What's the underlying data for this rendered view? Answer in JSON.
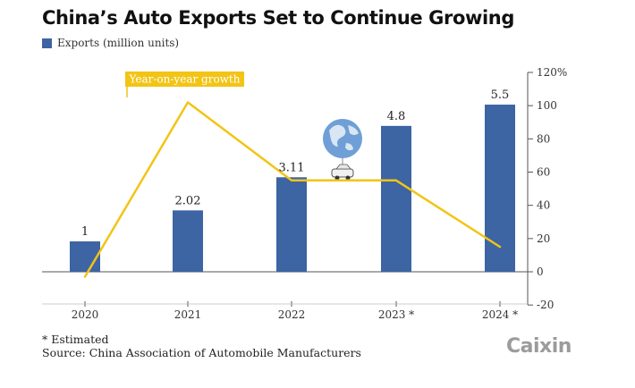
{
  "header": {
    "title": "China’s Auto Exports Set to Continue Growing"
  },
  "legend": {
    "bars_label": "Exports (million units)",
    "line_label": "Year-on-year growth"
  },
  "footnotes": {
    "estimated": "* Estimated",
    "source": "Source: China Association of Automobile Manufacturers"
  },
  "brand": {
    "logo_text": "Caixin"
  },
  "colors": {
    "bar": "#3d64a3",
    "line": "#f2c416",
    "axis": "#555555",
    "globe": "#6f9fd6"
  },
  "chart_data": {
    "type": "bar+line",
    "title": "China’s Auto Exports Set to Continue Growing",
    "categories": [
      "2020",
      "2021",
      "2022",
      "2023",
      "2024"
    ],
    "category_labels": [
      "2020",
      "2021",
      "2022",
      "2023 *",
      "2024 *"
    ],
    "estimated": [
      false,
      false,
      false,
      true,
      true
    ],
    "series": [
      {
        "name": "Exports (million units)",
        "kind": "bar",
        "values": [
          1,
          2.02,
          3.11,
          4.8,
          5.5
        ],
        "labels": [
          "1",
          "2.02",
          "3.11",
          "4.8",
          "5.5"
        ]
      },
      {
        "name": "Year-on-year growth",
        "kind": "line",
        "axis": "right",
        "unit": "%",
        "values": [
          -3,
          102,
          55,
          55,
          15
        ]
      }
    ],
    "y_right": {
      "min": -20,
      "max": 120,
      "ticks": [
        -20,
        0,
        20,
        40,
        60,
        80,
        100,
        120
      ],
      "tick_labels": [
        "-20",
        "0",
        "20",
        "40",
        "60",
        "80",
        "100",
        "120%"
      ]
    },
    "bar_scale_max": 6.56,
    "annotations": [
      "globe-with-car illustration above 2022 bar"
    ]
  }
}
